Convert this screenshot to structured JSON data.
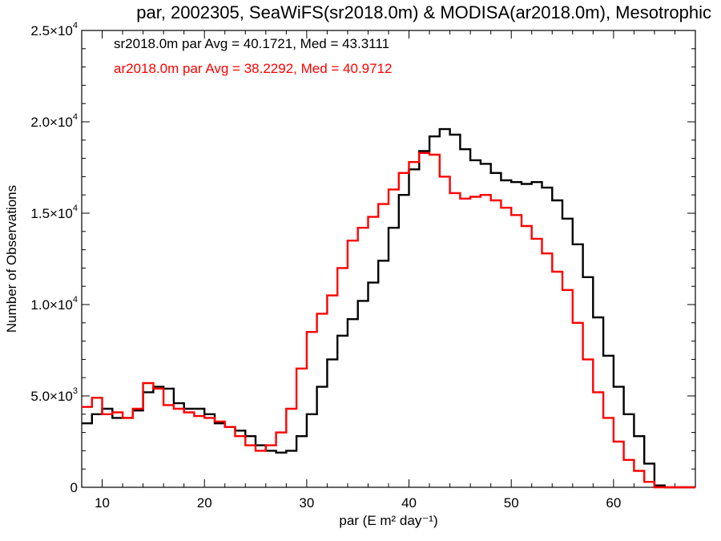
{
  "chart_data": {
    "type": "line",
    "title": "par, 2002305, SeaWiFS(sr2018.0m) & MODISA(ar2018.0m), Mesotrophic",
    "xlabel": "par (E m² day⁻¹)",
    "ylabel": "Number of Observations",
    "xlim": [
      8,
      68
    ],
    "ylim": [
      0,
      25000
    ],
    "xticks": [
      {
        "value": 10,
        "label": "10"
      },
      {
        "value": 20,
        "label": "20"
      },
      {
        "value": 30,
        "label": "30"
      },
      {
        "value": 40,
        "label": "40"
      },
      {
        "value": 50,
        "label": "50"
      },
      {
        "value": 60,
        "label": "60"
      }
    ],
    "yticks": [
      {
        "value": 0,
        "mant": "0",
        "exp": ""
      },
      {
        "value": 5000,
        "mant": "5.0×10",
        "exp": "3"
      },
      {
        "value": 10000,
        "mant": "1.0×10",
        "exp": "4"
      },
      {
        "value": 15000,
        "mant": "1.5×10",
        "exp": "4"
      },
      {
        "value": 20000,
        "mant": "2.0×10",
        "exp": "4"
      },
      {
        "value": 25000,
        "mant": "2.5×10",
        "exp": "4"
      }
    ],
    "legend_position": "top-left",
    "series": [
      {
        "name": "sr2018.0m",
        "label": "sr2018.0m par Avg = 40.1721, Med = 43.3111",
        "color": "#000000",
        "x": [
          8,
          9,
          10,
          11,
          12,
          13,
          14,
          15,
          16,
          17,
          18,
          19,
          20,
          21,
          22,
          23,
          24,
          25,
          26,
          27,
          28,
          29,
          30,
          31,
          32,
          33,
          34,
          35,
          36,
          37,
          38,
          39,
          40,
          41,
          42,
          43,
          44,
          45,
          46,
          47,
          48,
          49,
          50,
          51,
          52,
          53,
          54,
          55,
          56,
          57,
          58,
          59,
          60,
          61,
          62,
          63,
          64,
          65,
          66,
          67,
          68
        ],
        "y": [
          3500,
          4000,
          4300,
          3800,
          3800,
          4200,
          5200,
          5500,
          5400,
          4600,
          4300,
          4300,
          4000,
          3500,
          3300,
          3100,
          2800,
          2300,
          2000,
          1900,
          2000,
          2800,
          4000,
          5500,
          7000,
          8300,
          9200,
          10200,
          11200,
          12400,
          14200,
          16000,
          17400,
          18400,
          19200,
          19600,
          19300,
          18500,
          17900,
          17700,
          17200,
          16800,
          16700,
          16600,
          16700,
          16400,
          15700,
          14700,
          13300,
          11500,
          9300,
          7200,
          5500,
          4000,
          2800,
          1300,
          100,
          0,
          0,
          0,
          0
        ]
      },
      {
        "name": "ar2018.0m",
        "label": "ar2018.0m par Avg = 38.2292, Med = 40.9712",
        "color": "#ff0000",
        "x": [
          8,
          9,
          10,
          11,
          12,
          13,
          14,
          15,
          16,
          17,
          18,
          19,
          20,
          21,
          22,
          23,
          24,
          25,
          26,
          27,
          28,
          29,
          30,
          31,
          32,
          33,
          34,
          35,
          36,
          37,
          38,
          39,
          40,
          41,
          42,
          43,
          44,
          45,
          46,
          47,
          48,
          49,
          50,
          51,
          52,
          53,
          54,
          55,
          56,
          57,
          58,
          59,
          60,
          61,
          62,
          63,
          64,
          65,
          66,
          67,
          68
        ],
        "y": [
          4400,
          4900,
          4000,
          4100,
          3800,
          4300,
          5700,
          5400,
          4500,
          4300,
          4100,
          3900,
          3800,
          3600,
          3300,
          2800,
          2300,
          2000,
          2300,
          3000,
          4300,
          6500,
          8500,
          9500,
          10500,
          12000,
          13500,
          14200,
          14800,
          15500,
          16300,
          17200,
          17800,
          18300,
          18200,
          17000,
          16100,
          15800,
          15900,
          16000,
          15700,
          15300,
          14900,
          14300,
          13600,
          12800,
          11800,
          10800,
          9000,
          7000,
          5200,
          3800,
          2500,
          1500,
          900,
          300,
          0,
          0,
          0,
          0,
          0
        ]
      }
    ]
  }
}
